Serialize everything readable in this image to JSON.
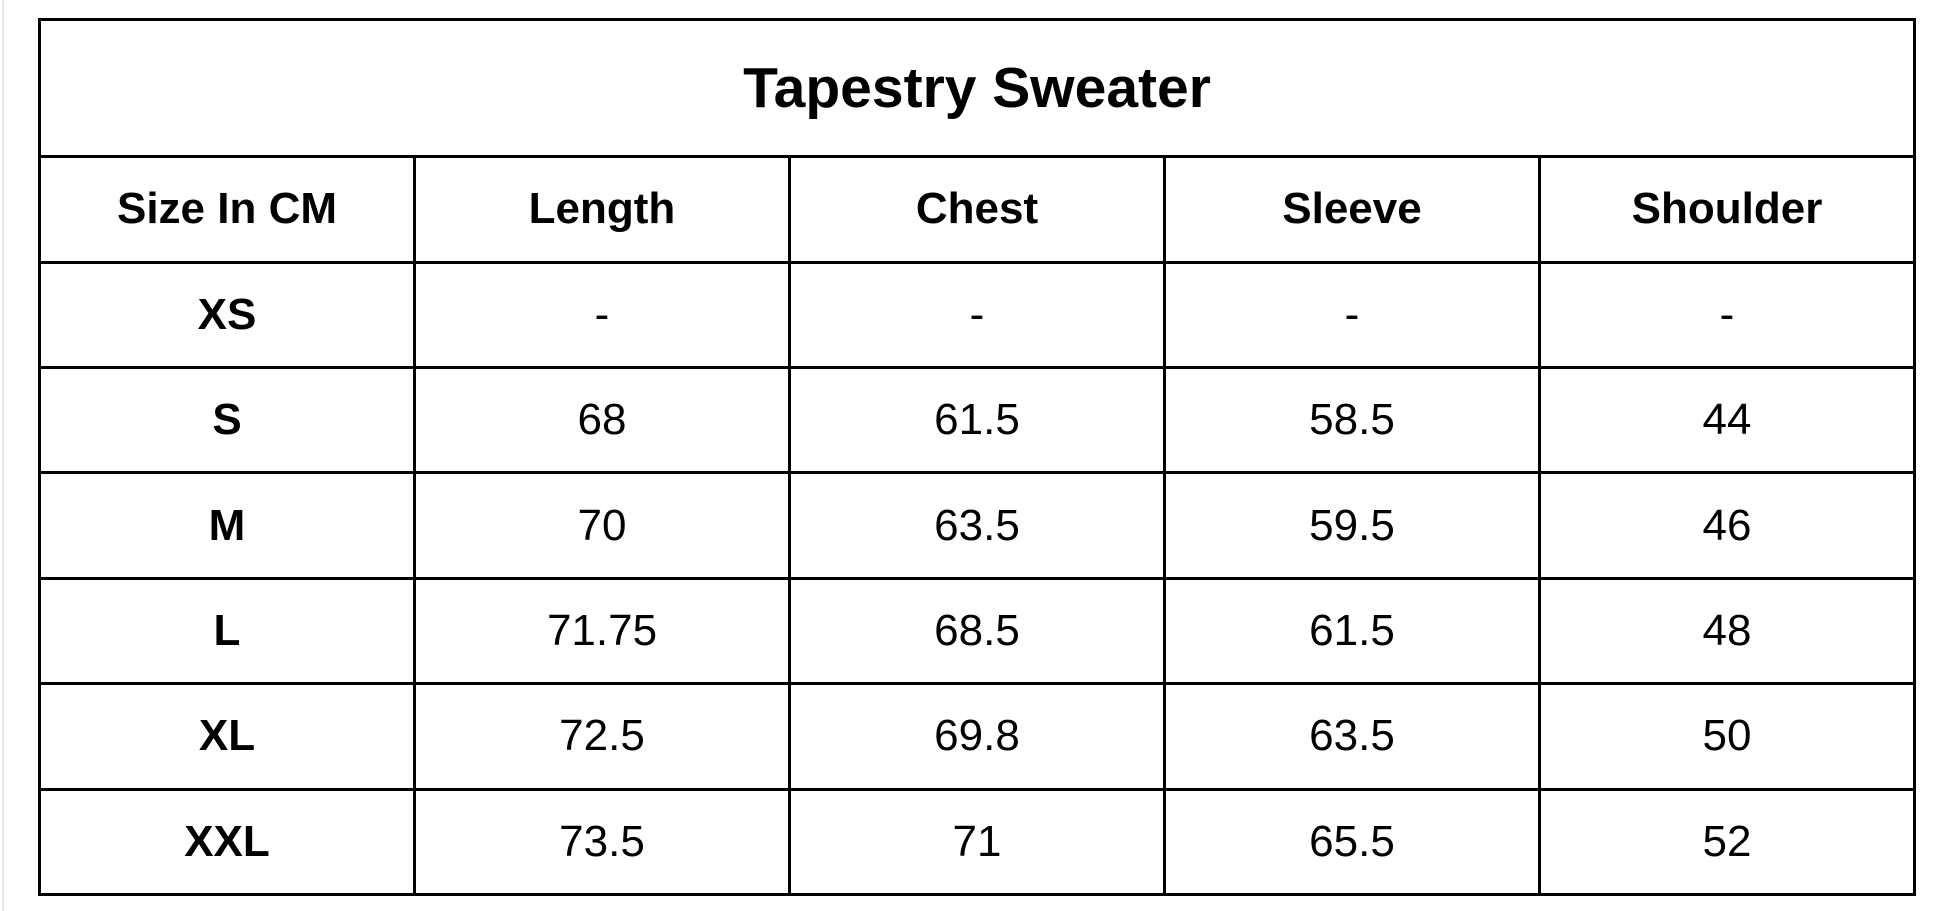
{
  "table": {
    "title": "Tapestry Sweater",
    "header": [
      "Size In CM",
      "Length",
      "Chest",
      "Sleeve",
      "Shoulder"
    ],
    "rows": [
      [
        "XS",
        "-",
        "-",
        "-",
        "-"
      ],
      [
        "S",
        "68",
        "61.5",
        "58.5",
        "44"
      ],
      [
        "M",
        "70",
        "63.5",
        "59.5",
        "46"
      ],
      [
        "L",
        "71.75",
        "68.5",
        "61.5",
        "48"
      ],
      [
        "XL",
        "72.5",
        "69.8",
        "63.5",
        "50"
      ],
      [
        "XXL",
        "73.5",
        "71",
        "65.5",
        "52"
      ]
    ]
  }
}
